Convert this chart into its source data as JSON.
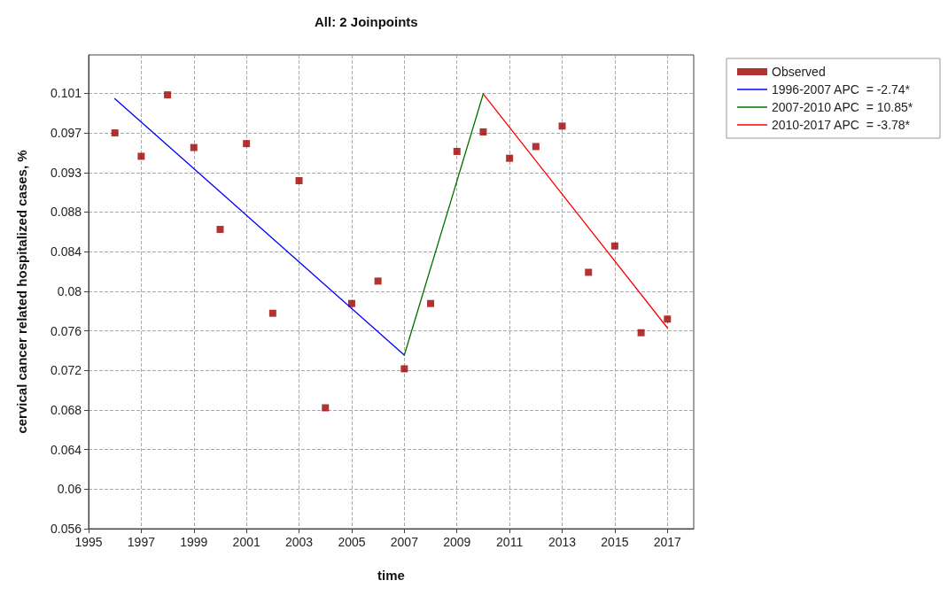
{
  "chart_data": {
    "type": "scatter",
    "title": "All: 2 Joinpoints",
    "xlabel": "time",
    "ylabel": "cervical cancer related hospitalized cases, %",
    "xlim": [
      1995,
      2018
    ],
    "xticks": [
      1995,
      1997,
      1999,
      2001,
      2003,
      2005,
      2007,
      2009,
      2011,
      2013,
      2015,
      2017
    ],
    "ylim": [
      0.056,
      0.1046
    ],
    "yticks": [
      {
        "value": 0.056,
        "label": "0.056"
      },
      {
        "value": 0.06006,
        "label": "0.06"
      },
      {
        "value": 0.06412,
        "label": "0.064"
      },
      {
        "value": 0.06818,
        "label": "0.068"
      },
      {
        "value": 0.07224,
        "label": "0.072"
      },
      {
        "value": 0.0763,
        "label": "0.076"
      },
      {
        "value": 0.08036,
        "label": "0.08"
      },
      {
        "value": 0.08442,
        "label": "0.084"
      },
      {
        "value": 0.08848,
        "label": "0.088"
      },
      {
        "value": 0.09254,
        "label": "0.093"
      },
      {
        "value": 0.0966,
        "label": "0.097"
      },
      {
        "value": 0.10066,
        "label": "0.101"
      }
    ],
    "grid": true,
    "legend": "top right",
    "x": [
      1996,
      1997,
      1998,
      1999,
      2000,
      2001,
      2002,
      2003,
      2004,
      2005,
      2006,
      2007,
      2008,
      2009,
      2010,
      2011,
      2012,
      2013,
      2014,
      2015,
      2016,
      2017
    ],
    "series": [
      {
        "name": "Observed",
        "marker": "square",
        "color": "#a00000",
        "values": [
          0.0966,
          0.0942,
          0.1005,
          0.0951,
          0.0867,
          0.0955,
          0.0781,
          0.0917,
          0.0684,
          0.0791,
          0.0814,
          0.0724,
          0.0791,
          0.0947,
          0.0967,
          0.094,
          0.0952,
          0.0973,
          0.0823,
          0.085,
          0.0761,
          0.0775
        ]
      },
      {
        "name": "1996-2007 APC  = -2.74*",
        "type": "line",
        "marker": "none",
        "line_style": "solid",
        "color": "#0000ff",
        "x": [
          1996,
          2007
        ],
        "values": [
          0.1001,
          0.0738
        ]
      },
      {
        "name": "2007-2010 APC  = 10.85*",
        "type": "line",
        "marker": "none",
        "line_style": "solid",
        "color": "#007000",
        "x": [
          2007,
          2010
        ],
        "values": [
          0.0738,
          0.1006
        ]
      },
      {
        "name": "2010-2017 APC  = -3.78*",
        "type": "line",
        "marker": "none",
        "line_style": "solid",
        "color": "#ff0000",
        "x": [
          2010,
          2017
        ],
        "values": [
          0.1006,
          0.0766
        ]
      }
    ]
  }
}
